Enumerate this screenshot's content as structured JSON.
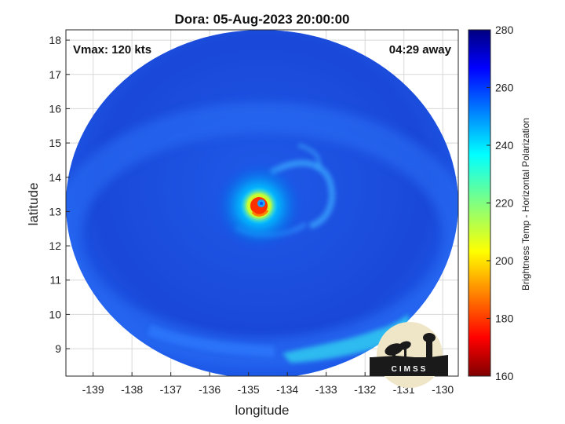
{
  "title": "Dora: 05-Aug-2023 20:00:00",
  "annotations": {
    "vmax": "Vmax: 120 kts",
    "time_away": "04:29 away"
  },
  "logo": {
    "text": "CIMSS"
  },
  "chart_data": {
    "type": "heatmap",
    "title": "Dora: 05-Aug-2023 20:00:00",
    "xlabel": "longitude",
    "ylabel": "latitude",
    "xlim": [
      -139.7,
      -129.6
    ],
    "ylim": [
      8.2,
      18.3
    ],
    "xticks": [
      -139,
      -138,
      -137,
      -136,
      -135,
      -134,
      -133,
      -132,
      -131,
      -130
    ],
    "xtick_labels": [
      "-139",
      "-138",
      "-137",
      "-136",
      "-135",
      "-134",
      "-133",
      "-132",
      "-131",
      "-130"
    ],
    "yticks": [
      9,
      10,
      11,
      12,
      13,
      14,
      15,
      16,
      17,
      18
    ],
    "ytick_labels": [
      "9",
      "10",
      "11",
      "12",
      "13",
      "14",
      "15",
      "16",
      "17",
      "18"
    ],
    "grid": true,
    "storm_center": {
      "lon": -134.6,
      "lat": 13.2
    },
    "colorbar": {
      "label": "Brightness Temp - Horizontal Polarization",
      "range": [
        160,
        280
      ],
      "ticks": [
        160,
        180,
        200,
        220,
        240,
        260,
        280
      ],
      "tick_labels": [
        "160",
        "180",
        "200",
        "220",
        "240",
        "260",
        "280"
      ],
      "colormap": "jet"
    },
    "features": [
      {
        "name": "eye",
        "lon": -134.6,
        "lat": 13.2,
        "value": 240
      },
      {
        "name": "eyewall",
        "lon": -134.7,
        "lat": 13.2,
        "value": 190
      },
      {
        "name": "inner-ring",
        "lon": -134.7,
        "lat": 13.15,
        "value": 225
      },
      {
        "name": "southern-band",
        "lon": -132.5,
        "lat": 8.8,
        "value": 245
      }
    ]
  },
  "colors": {
    "background_field": "#1a4fe0",
    "warm_band": "#2a6ef5",
    "eyewall": "#ff3a00",
    "grid": "#d8d8d8"
  }
}
